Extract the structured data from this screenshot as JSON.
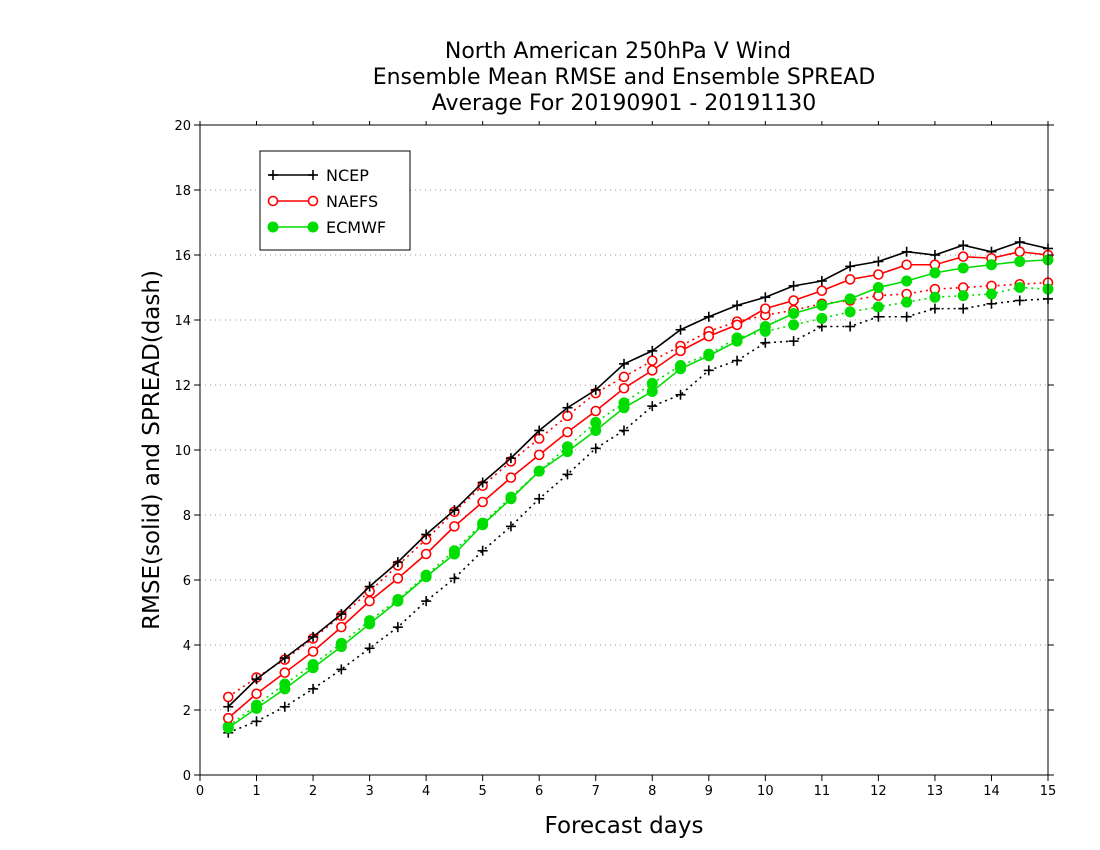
{
  "chart_data": {
    "type": "line",
    "title": [
      "North American 250hPa V Wind",
      "Ensemble Mean RMSE and Ensemble SPREAD",
      "Average For 20190901 - 20191130"
    ],
    "xlabel": "Forecast days",
    "ylabel": "RMSE(solid) and SPREAD(dash)",
    "xlim": [
      0,
      15
    ],
    "ylim": [
      0,
      20
    ],
    "xticks": [
      0,
      1,
      2,
      3,
      4,
      5,
      6,
      7,
      8,
      9,
      10,
      11,
      12,
      13,
      14,
      15
    ],
    "yticks": [
      0,
      2,
      4,
      6,
      8,
      10,
      12,
      14,
      16,
      18,
      20
    ],
    "grid": "horizontal dotted",
    "legend_position": "top-left",
    "x": [
      0.5,
      1,
      1.5,
      2,
      2.5,
      3,
      3.5,
      4,
      4.5,
      5,
      5.5,
      6,
      6.5,
      7,
      7.5,
      8,
      8.5,
      9,
      9.5,
      10,
      10.5,
      11,
      11.5,
      12,
      12.5,
      13,
      13.5,
      14,
      14.5,
      15
    ],
    "series": [
      {
        "name": "NCEP",
        "color": "#000000",
        "marker": "plus",
        "rmse": [
          2.1,
          2.95,
          3.6,
          4.25,
          4.95,
          5.8,
          6.55,
          7.4,
          8.15,
          9.0,
          9.75,
          10.6,
          11.3,
          11.85,
          12.65,
          13.05,
          13.7,
          14.1,
          14.45,
          14.7,
          15.05,
          15.2,
          15.65,
          15.8,
          16.1,
          16.0,
          16.3,
          16.1,
          16.4,
          16.2
        ],
        "spread": [
          1.3,
          1.65,
          2.1,
          2.65,
          3.25,
          3.9,
          4.55,
          5.35,
          6.05,
          6.9,
          7.65,
          8.5,
          9.25,
          10.05,
          10.6,
          11.35,
          11.7,
          12.45,
          12.75,
          13.3,
          13.35,
          13.8,
          13.8,
          14.1,
          14.1,
          14.35,
          14.35,
          14.5,
          14.6,
          14.65
        ]
      },
      {
        "name": "NAEFS",
        "color": "#ff0000",
        "marker": "open-circle",
        "rmse": [
          1.75,
          2.5,
          3.15,
          3.8,
          4.55,
          5.35,
          6.05,
          6.8,
          7.65,
          8.4,
          9.15,
          9.85,
          10.55,
          11.2,
          11.9,
          12.45,
          13.05,
          13.5,
          13.85,
          14.35,
          14.6,
          14.9,
          15.25,
          15.4,
          15.7,
          15.7,
          15.95,
          15.9,
          16.1,
          16.0
        ],
        "spread": [
          2.4,
          3.0,
          3.55,
          4.2,
          4.9,
          5.65,
          6.45,
          7.25,
          8.1,
          8.9,
          9.65,
          10.35,
          11.05,
          11.75,
          12.25,
          12.75,
          13.2,
          13.65,
          13.95,
          14.15,
          14.3,
          14.5,
          14.6,
          14.75,
          14.8,
          14.95,
          15.0,
          15.05,
          15.1,
          15.15
        ]
      },
      {
        "name": "ECMWF",
        "color": "#00dd00",
        "marker": "filled-circle",
        "rmse": [
          1.45,
          2.05,
          2.65,
          3.3,
          3.95,
          4.65,
          5.35,
          6.1,
          6.8,
          7.7,
          8.5,
          9.35,
          9.95,
          10.6,
          11.3,
          11.8,
          12.5,
          12.9,
          13.35,
          13.8,
          14.2,
          14.45,
          14.65,
          15.0,
          15.2,
          15.45,
          15.6,
          15.7,
          15.8,
          15.85
        ],
        "spread": [
          1.5,
          2.15,
          2.8,
          3.4,
          4.05,
          4.75,
          5.4,
          6.15,
          6.9,
          7.75,
          8.55,
          9.35,
          10.1,
          10.85,
          11.45,
          12.05,
          12.6,
          12.95,
          13.45,
          13.65,
          13.85,
          14.05,
          14.25,
          14.4,
          14.55,
          14.7,
          14.75,
          14.8,
          15.0,
          14.95
        ]
      }
    ]
  }
}
